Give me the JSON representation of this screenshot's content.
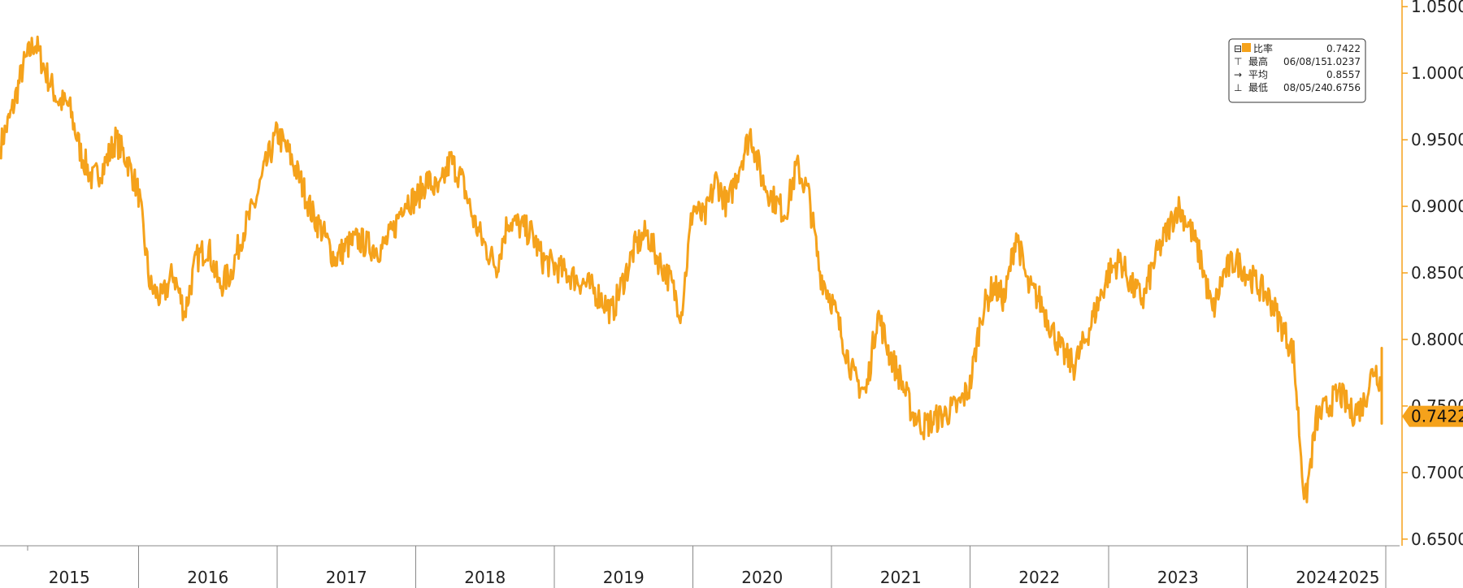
{
  "chart_data": {
    "type": "line",
    "series": [
      {
        "name": "比率",
        "color": "#f5a21b",
        "x": [
          "2015-01",
          "2015-02",
          "2015-03",
          "2015-04",
          "2015-05",
          "2015-06",
          "2015-07",
          "2015-08",
          "2015-09",
          "2015-10",
          "2015-11",
          "2015-12",
          "2016-01",
          "2016-02",
          "2016-03",
          "2016-04",
          "2016-05",
          "2016-06",
          "2016-07",
          "2016-08",
          "2016-09",
          "2016-10",
          "2016-11",
          "2016-12",
          "2017-01",
          "2017-02",
          "2017-03",
          "2017-04",
          "2017-05",
          "2017-06",
          "2017-07",
          "2017-08",
          "2017-09",
          "2017-10",
          "2017-11",
          "2017-12",
          "2018-01",
          "2018-02",
          "2018-03",
          "2018-04",
          "2018-05",
          "2018-06",
          "2018-07",
          "2018-08",
          "2018-09",
          "2018-10",
          "2018-11",
          "2018-12",
          "2019-01",
          "2019-02",
          "2019-03",
          "2019-04",
          "2019-05",
          "2019-06",
          "2019-07",
          "2019-08",
          "2019-09",
          "2019-10",
          "2019-11",
          "2019-12",
          "2020-01",
          "2020-02",
          "2020-03",
          "2020-04",
          "2020-05",
          "2020-06",
          "2020-07",
          "2020-08",
          "2020-09",
          "2020-10",
          "2020-11",
          "2020-12",
          "2021-01",
          "2021-02",
          "2021-03",
          "2021-04",
          "2021-05",
          "2021-06",
          "2021-07",
          "2021-08",
          "2021-09",
          "2021-10",
          "2021-11",
          "2021-12",
          "2022-01",
          "2022-02",
          "2022-03",
          "2022-04",
          "2022-05",
          "2022-06",
          "2022-07",
          "2022-08",
          "2022-09",
          "2022-10",
          "2022-11",
          "2022-12",
          "2023-01",
          "2023-02",
          "2023-03",
          "2023-04",
          "2023-05",
          "2023-06",
          "2023-07",
          "2023-08",
          "2023-09",
          "2023-10",
          "2023-11",
          "2023-12",
          "2024-01",
          "2024-02",
          "2024-03",
          "2024-04",
          "2024-05",
          "2024-06",
          "2024-07",
          "2024-08",
          "2024-09",
          "2024-10",
          "2024-11",
          "2024-12",
          "2025-01",
          "2025-02",
          "2025-03",
          "2025-04"
        ],
        "values": [
          0.945,
          0.97,
          1.005,
          1.0237,
          1.0,
          0.98,
          0.975,
          0.94,
          0.92,
          0.93,
          0.95,
          0.935,
          0.91,
          0.84,
          0.83,
          0.85,
          0.82,
          0.86,
          0.87,
          0.84,
          0.85,
          0.88,
          0.9,
          0.93,
          0.955,
          0.94,
          0.92,
          0.895,
          0.88,
          0.86,
          0.87,
          0.875,
          0.87,
          0.868,
          0.88,
          0.905,
          0.905,
          0.92,
          0.91,
          0.935,
          0.92,
          0.89,
          0.87,
          0.855,
          0.89,
          0.885,
          0.88,
          0.86,
          0.855,
          0.85,
          0.845,
          0.84,
          0.832,
          0.82,
          0.845,
          0.87,
          0.88,
          0.86,
          0.845,
          0.82,
          0.9,
          0.89,
          0.92,
          0.9,
          0.93,
          0.955,
          0.92,
          0.905,
          0.895,
          0.93,
          0.91,
          0.85,
          0.83,
          0.8,
          0.77,
          0.76,
          0.82,
          0.79,
          0.77,
          0.745,
          0.735,
          0.74,
          0.745,
          0.75,
          0.765,
          0.82,
          0.84,
          0.83,
          0.88,
          0.84,
          0.83,
          0.81,
          0.79,
          0.78,
          0.8,
          0.825,
          0.85,
          0.86,
          0.84,
          0.83,
          0.86,
          0.88,
          0.9,
          0.885,
          0.86,
          0.82,
          0.85,
          0.86,
          0.85,
          0.84,
          0.83,
          0.81,
          0.79,
          0.6756,
          0.74,
          0.75,
          0.76,
          0.745,
          0.75,
          0.78,
          0.76,
          0.74,
          0.79,
          0.7422
        ]
      }
    ],
    "xlabel": "",
    "ylabel": "",
    "xtick_labels": [
      "2015",
      "2016",
      "2017",
      "2018",
      "2019",
      "2020",
      "2021",
      "2022",
      "2023",
      "2024",
      "2025"
    ],
    "ytick_labels": [
      "1.0500",
      "1.0000",
      "0.9500",
      "0.9000",
      "0.8500",
      "0.8000",
      "0.7500",
      "0.7000",
      "0.6500"
    ],
    "yticks": [
      1.05,
      1.0,
      0.95,
      0.9,
      0.85,
      0.8,
      0.75,
      0.7,
      0.65
    ],
    "ylim": [
      0.645,
      1.055
    ],
    "grid": false,
    "current_value_label": "0.7422",
    "legend": {
      "placement": "top-right",
      "rows": [
        {
          "marker": "⊟",
          "label": "比率",
          "date": "",
          "value": "0.7422"
        },
        {
          "marker": "⊤",
          "label": "最高",
          "date": "06/08/15",
          "value": "1.0237"
        },
        {
          "marker": "→",
          "label": "平均",
          "date": "",
          "value": "0.8557"
        },
        {
          "marker": "⊥",
          "label": "最低",
          "date": "08/05/24",
          "value": "0.6756"
        }
      ]
    }
  }
}
